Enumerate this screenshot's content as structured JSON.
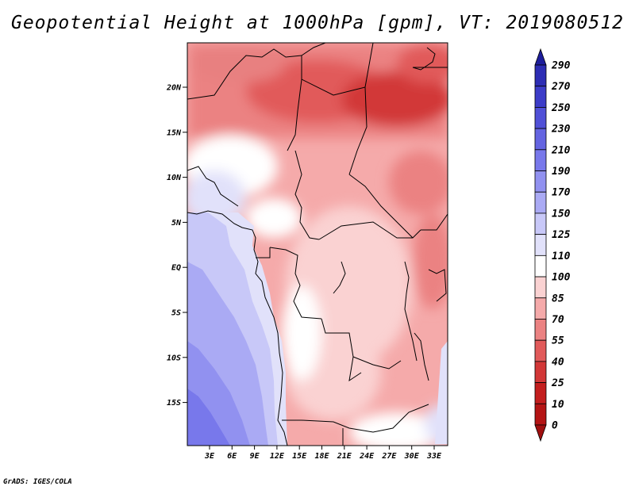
{
  "title": "Geopotential Height at 1000hPa [gpm], VT: 2019080512",
  "credit": "GrADS: IGES/COLA",
  "map": {
    "lat_labels": [
      "20N",
      "15N",
      "10N",
      "5N",
      "EQ",
      "5S",
      "10S",
      "15S"
    ],
    "lon_labels": [
      "3E",
      "6E",
      "9E",
      "12E",
      "15E",
      "18E",
      "21E",
      "24E",
      "27E",
      "30E",
      "33E"
    ]
  },
  "colorbar": {
    "labels": [
      "290",
      "270",
      "250",
      "230",
      "210",
      "190",
      "170",
      "150",
      "125",
      "110",
      "100",
      "85",
      "70",
      "55",
      "40",
      "25",
      "10",
      "0"
    ],
    "colors": [
      "#1e1e9c",
      "#2d2db4",
      "#3c3cc8",
      "#5050d7",
      "#6464e1",
      "#7878eb",
      "#9191f0",
      "#aaaaf4",
      "#c8c8f8",
      "#e1e1fa",
      "#ffffff",
      "#fad2d2",
      "#f5aaaa",
      "#eb8282",
      "#e15a5a",
      "#d23737",
      "#c31e1e",
      "#b41414",
      "#a00f0f"
    ]
  }
}
